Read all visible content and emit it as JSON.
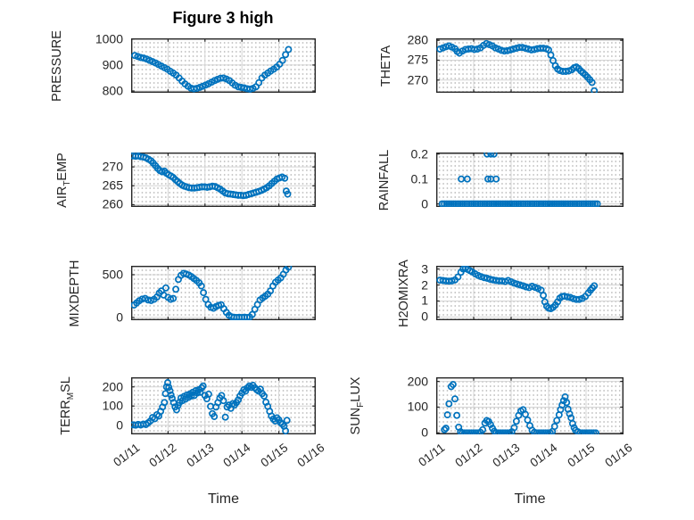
{
  "figure": {
    "title": "Figure 3 high",
    "xlabel": "Time",
    "marker_color": "#0072BD",
    "axis_color": "#262626",
    "grid_color": "#d4d4d4",
    "x_ticks": [
      11,
      12,
      13,
      14,
      15,
      16
    ],
    "x_ticklabels": [
      "01/11",
      "01/12",
      "01/13",
      "01/14",
      "01/15",
      "01/16"
    ],
    "xlim": [
      11,
      16
    ]
  },
  "chart_data": [
    {
      "id": "pressure",
      "type": "scatter",
      "title": "",
      "ylabel": "PRESSURE",
      "ylabel_parts": [
        {
          "t": "PRESSURE"
        }
      ],
      "ylim": [
        793,
        1003
      ],
      "yticks": [
        800,
        900,
        1000
      ],
      "ytick_labels": [
        "800",
        "900",
        "1000"
      ],
      "grid": true,
      "show_x_ticklabels": false,
      "x": [
        11.1,
        11.18,
        11.26,
        11.34,
        11.42,
        11.5,
        11.58,
        11.66,
        11.74,
        11.82,
        11.9,
        11.98,
        12.06,
        12.14,
        12.22,
        12.3,
        12.38,
        12.46,
        12.54,
        12.62,
        12.7,
        12.78,
        12.86,
        12.94,
        13.02,
        13.1,
        13.18,
        13.26,
        13.34,
        13.42,
        13.5,
        13.58,
        13.66,
        13.74,
        13.82,
        13.9,
        13.98,
        14.06,
        14.14,
        14.22,
        14.3,
        14.38,
        14.46,
        14.54,
        14.62,
        14.7,
        14.78,
        14.86,
        14.94,
        15.02,
        15.1,
        15.18,
        15.26
      ],
      "y": [
        937,
        933,
        929,
        927,
        923,
        918,
        913,
        908,
        902,
        896,
        890,
        884,
        876,
        869,
        861,
        850,
        838,
        827,
        818,
        811,
        808,
        810,
        814,
        818,
        823,
        828,
        834,
        840,
        845,
        849,
        850,
        846,
        840,
        831,
        822,
        816,
        814,
        812,
        809,
        807,
        810,
        816,
        832,
        850,
        861,
        869,
        877,
        884,
        892,
        903,
        918,
        940,
        960
      ]
    },
    {
      "id": "theta",
      "type": "scatter",
      "title": "",
      "ylabel": "THETA",
      "ylabel_parts": [
        {
          "t": "THETA"
        }
      ],
      "ylim": [
        266.8,
        280.5
      ],
      "yticks": [
        270,
        275,
        280
      ],
      "ytick_labels": [
        "270",
        "275",
        "280"
      ],
      "grid": true,
      "show_x_ticklabels": false,
      "x": [
        11.1,
        11.18,
        11.26,
        11.34,
        11.42,
        11.5,
        11.56,
        11.62,
        11.7,
        11.78,
        11.86,
        11.94,
        12.02,
        12.1,
        12.18,
        12.26,
        12.34,
        12.42,
        12.5,
        12.58,
        12.66,
        12.74,
        12.82,
        12.9,
        12.98,
        13.06,
        13.14,
        13.22,
        13.3,
        13.38,
        13.46,
        13.54,
        13.62,
        13.7,
        13.78,
        13.86,
        13.94,
        14.0,
        14.06,
        14.12,
        14.18,
        14.24,
        14.3,
        14.38,
        14.46,
        14.54,
        14.62,
        14.68,
        14.74,
        14.8,
        14.86,
        14.92,
        14.98,
        15.04,
        15.1,
        15.16,
        15.22
      ],
      "y": [
        277.8,
        278.1,
        278.4,
        278.6,
        278.3,
        277.9,
        277.2,
        276.8,
        277.3,
        277.7,
        277.8,
        277.9,
        277.7,
        277.8,
        278.1,
        278.7,
        279.2,
        278.9,
        278.6,
        278.1,
        277.8,
        277.5,
        277.3,
        277.4,
        277.6,
        277.8,
        278.0,
        278.2,
        278.2,
        278.0,
        277.8,
        277.6,
        277.7,
        277.9,
        278.0,
        278.0,
        277.9,
        277.6,
        276.3,
        274.9,
        273.6,
        272.8,
        272.4,
        272.2,
        272.2,
        272.3,
        272.6,
        273.1,
        273.3,
        272.9,
        272.3,
        271.8,
        271.3,
        270.7,
        270.1,
        269.4,
        267.3
      ]
    },
    {
      "id": "airtemp",
      "type": "scatter",
      "title": "",
      "ylabel": "AIR_TEMP",
      "ylabel_parts": [
        {
          "t": "AIR"
        },
        {
          "t": "T",
          "sub": true
        },
        {
          "t": "EMP"
        }
      ],
      "ylim": [
        259.4,
        273.8
      ],
      "yticks": [
        260,
        265,
        270
      ],
      "ytick_labels": [
        "260",
        "265",
        "270"
      ],
      "grid": true,
      "show_x_ticklabels": false,
      "x": [
        11.05,
        11.12,
        11.19,
        11.26,
        11.33,
        11.4,
        11.47,
        11.54,
        11.6,
        11.66,
        11.72,
        11.78,
        11.84,
        11.9,
        11.96,
        12.02,
        12.08,
        12.14,
        12.2,
        12.26,
        12.32,
        12.38,
        12.44,
        12.5,
        12.57,
        12.64,
        12.71,
        12.78,
        12.85,
        12.92,
        12.99,
        13.06,
        13.13,
        13.2,
        13.27,
        13.34,
        13.41,
        13.48,
        13.55,
        13.62,
        13.69,
        13.76,
        13.83,
        13.9,
        13.97,
        14.04,
        14.11,
        14.18,
        14.25,
        14.32,
        14.39,
        14.46,
        14.53,
        14.6,
        14.67,
        14.74,
        14.81,
        14.88,
        14.95,
        15.02,
        15.09,
        15.16,
        15.2,
        15.24
      ],
      "y": [
        272.9,
        272.8,
        272.9,
        272.7,
        272.6,
        272.4,
        272.0,
        271.6,
        271.0,
        270.3,
        269.6,
        269.0,
        268.7,
        268.9,
        268.3,
        267.9,
        267.6,
        267.2,
        266.6,
        266.1,
        265.6,
        265.2,
        264.9,
        264.7,
        264.5,
        264.4,
        264.4,
        264.5,
        264.6,
        264.7,
        264.7,
        264.6,
        264.7,
        264.9,
        264.8,
        264.5,
        264.1,
        263.6,
        263.1,
        262.9,
        262.8,
        262.7,
        262.6,
        262.5,
        262.5,
        262.4,
        262.5,
        262.7,
        262.9,
        263.1,
        263.3,
        263.5,
        263.8,
        264.1,
        264.5,
        265.0,
        265.6,
        266.2,
        266.8,
        267.1,
        267.3,
        267.0,
        263.6,
        262.8
      ]
    },
    {
      "id": "rainfall",
      "type": "scatter",
      "title": "",
      "ylabel": "RAINFALL",
      "ylabel_parts": [
        {
          "t": "RAINFALL"
        }
      ],
      "ylim": [
        -0.012,
        0.206
      ],
      "yticks": [
        0,
        0.1,
        0.2
      ],
      "ytick_labels": [
        "0",
        "0.1",
        "0.2"
      ],
      "grid": true,
      "show_x_ticklabels": false,
      "x": [
        11.16,
        11.22,
        11.28,
        11.34,
        11.4,
        11.46,
        11.52,
        11.58,
        11.64,
        11.7,
        11.76,
        11.82,
        11.88,
        11.94,
        12.0,
        12.06,
        12.12,
        12.18,
        12.24,
        12.3,
        12.36,
        12.42,
        12.48,
        12.54,
        12.6,
        12.66,
        12.72,
        12.78,
        12.84,
        12.9,
        12.96,
        13.02,
        13.08,
        13.14,
        13.2,
        13.26,
        13.32,
        13.38,
        13.44,
        13.5,
        13.56,
        13.62,
        13.68,
        13.74,
        13.8,
        13.86,
        13.92,
        13.98,
        14.04,
        14.1,
        14.16,
        14.22,
        14.28,
        14.34,
        14.4,
        14.46,
        14.52,
        14.58,
        14.64,
        14.7,
        14.76,
        14.82,
        14.88,
        14.94,
        15.0,
        15.06,
        15.12,
        15.18,
        15.24,
        15.3,
        11.67,
        11.83,
        12.38,
        12.46,
        12.6,
        12.36,
        12.46,
        12.54
      ],
      "y": [
        0,
        0,
        0,
        0,
        0,
        0,
        0,
        0,
        0,
        0,
        0,
        0,
        0,
        0,
        0,
        0,
        0,
        0,
        0,
        0,
        0,
        0,
        0,
        0,
        0,
        0,
        0,
        0,
        0,
        0,
        0,
        0,
        0,
        0,
        0,
        0,
        0,
        0,
        0,
        0,
        0,
        0,
        0,
        0,
        0,
        0,
        0,
        0,
        0,
        0,
        0,
        0,
        0,
        0,
        0,
        0,
        0,
        0,
        0,
        0,
        0,
        0,
        0,
        0,
        0,
        0,
        0,
        0,
        0,
        0,
        0.1,
        0.1,
        0.1,
        0.1,
        0.1,
        0.2,
        0.2,
        0.2
      ]
    },
    {
      "id": "mixdepth",
      "type": "scatter",
      "title": "",
      "ylabel": "MIXDEPTH",
      "ylabel_parts": [
        {
          "t": "MIXDEPTH"
        }
      ],
      "ylim": [
        -32,
        604
      ],
      "yticks": [
        0,
        500
      ],
      "ytick_labels": [
        "0",
        "500"
      ],
      "grid": true,
      "show_x_ticklabels": false,
      "x": [
        11.08,
        11.15,
        11.22,
        11.3,
        11.38,
        11.46,
        11.54,
        11.62,
        11.7,
        11.76,
        11.82,
        11.88,
        11.94,
        12.0,
        12.07,
        12.14,
        12.21,
        12.28,
        12.35,
        12.42,
        12.49,
        12.56,
        12.63,
        12.7,
        12.77,
        12.84,
        12.9,
        12.96,
        13.02,
        13.09,
        13.16,
        13.23,
        13.3,
        13.37,
        13.44,
        13.51,
        13.58,
        13.65,
        13.72,
        13.79,
        13.86,
        13.93,
        14.0,
        14.07,
        14.14,
        14.21,
        14.28,
        14.35,
        14.42,
        14.49,
        14.56,
        14.63,
        14.7,
        14.77,
        14.84,
        14.91,
        14.98,
        15.05,
        15.12,
        15.19,
        15.26
      ],
      "y": [
        145,
        170,
        195,
        215,
        222,
        205,
        198,
        212,
        240,
        285,
        310,
        262,
        345,
        235,
        212,
        222,
        330,
        445,
        492,
        515,
        508,
        497,
        478,
        455,
        432,
        405,
        368,
        290,
        212,
        152,
        118,
        108,
        128,
        142,
        148,
        102,
        60,
        25,
        8,
        2,
        0,
        2,
        0,
        3,
        0,
        5,
        35,
        95,
        150,
        205,
        228,
        248,
        272,
        310,
        368,
        412,
        438,
        462,
        505,
        555,
        588
      ]
    },
    {
      "id": "h2omixra",
      "type": "scatter",
      "title": "",
      "ylabel": "H2OMIXRA",
      "ylabel_parts": [
        {
          "t": "H2OMIXRA"
        }
      ],
      "ylim": [
        -0.2,
        3.2
      ],
      "yticks": [
        0,
        1,
        2,
        3
      ],
      "ytick_labels": [
        "0",
        "1",
        "2",
        "3"
      ],
      "grid": true,
      "show_x_ticklabels": false,
      "x": [
        11.1,
        11.18,
        11.26,
        11.34,
        11.42,
        11.5,
        11.58,
        11.66,
        11.72,
        11.78,
        11.84,
        11.9,
        11.96,
        12.04,
        12.12,
        12.2,
        12.28,
        12.36,
        12.44,
        12.52,
        12.6,
        12.68,
        12.76,
        12.84,
        12.92,
        13.0,
        13.08,
        13.16,
        13.24,
        13.32,
        13.4,
        13.48,
        13.56,
        13.64,
        13.72,
        13.8,
        13.86,
        13.9,
        13.95,
        14.0,
        14.06,
        14.12,
        14.18,
        14.24,
        14.3,
        14.36,
        14.42,
        14.5,
        14.58,
        14.66,
        14.74,
        14.82,
        14.9,
        14.98,
        15.06,
        15.12,
        15.17,
        15.22
      ],
      "y": [
        2.3,
        2.28,
        2.25,
        2.24,
        2.26,
        2.32,
        2.5,
        2.8,
        3.0,
        3.05,
        2.97,
        2.9,
        2.82,
        2.7,
        2.6,
        2.52,
        2.46,
        2.42,
        2.36,
        2.32,
        2.28,
        2.26,
        2.26,
        2.22,
        2.28,
        2.2,
        2.12,
        2.06,
        2.0,
        1.95,
        1.88,
        1.84,
        1.92,
        1.85,
        1.78,
        1.68,
        1.35,
        0.95,
        0.68,
        0.55,
        0.52,
        0.6,
        0.75,
        0.95,
        1.18,
        1.28,
        1.3,
        1.26,
        1.22,
        1.15,
        1.1,
        1.1,
        1.16,
        1.28,
        1.5,
        1.68,
        1.82,
        1.95
      ]
    },
    {
      "id": "terrmsl",
      "type": "scatter",
      "title": "",
      "ylabel": "TERR_MSL",
      "ylabel_parts": [
        {
          "t": "TERR"
        },
        {
          "t": "M",
          "sub": true
        },
        {
          "t": "SL"
        }
      ],
      "ylim": [
        -48,
        250
      ],
      "yticks": [
        0,
        100,
        200
      ],
      "ytick_labels": [
        "0",
        "100",
        "200"
      ],
      "grid": true,
      "show_x_ticklabels": true,
      "x": [
        11.05,
        11.12,
        11.19,
        11.26,
        11.33,
        11.4,
        11.46,
        11.52,
        11.58,
        11.64,
        11.7,
        11.75,
        11.8,
        11.85,
        11.9,
        11.93,
        11.96,
        11.99,
        12.02,
        12.05,
        12.08,
        12.11,
        12.15,
        12.19,
        12.23,
        12.27,
        12.31,
        12.35,
        12.39,
        12.43,
        12.47,
        12.51,
        12.55,
        12.59,
        12.63,
        12.67,
        12.71,
        12.75,
        12.79,
        12.83,
        12.87,
        12.91,
        12.95,
        13.0,
        13.05,
        13.1,
        13.15,
        13.2,
        13.25,
        13.3,
        13.35,
        13.4,
        13.45,
        13.5,
        13.55,
        13.6,
        13.65,
        13.7,
        13.75,
        13.8,
        13.85,
        13.9,
        13.95,
        14.0,
        14.05,
        14.1,
        14.15,
        14.2,
        14.25,
        14.3,
        14.35,
        14.4,
        14.45,
        14.5,
        14.55,
        14.6,
        14.65,
        14.7,
        14.75,
        14.8,
        14.85,
        14.9,
        14.95,
        15.0,
        15.05,
        15.1,
        15.14,
        15.18,
        15.22
      ],
      "y": [
        2,
        0,
        4,
        1,
        6,
        3,
        12,
        22,
        40,
        34,
        55,
        48,
        72,
        95,
        118,
        165,
        200,
        222,
        198,
        180,
        158,
        140,
        118,
        95,
        80,
        103,
        118,
        142,
        128,
        150,
        136,
        158,
        145,
        163,
        152,
        172,
        155,
        180,
        168,
        185,
        172,
        195,
        205,
        155,
        138,
        162,
        98,
        60,
        45,
        95,
        118,
        142,
        155,
        128,
        42,
        95,
        105,
        88,
        112,
        105,
        118,
        132,
        152,
        168,
        185,
        178,
        195,
        205,
        198,
        208,
        195,
        185,
        178,
        188,
        165,
        152,
        120,
        98,
        72,
        48,
        32,
        22,
        38,
        28,
        12,
        5,
        -5,
        -30,
        25
      ]
    },
    {
      "id": "sunflux",
      "type": "scatter",
      "title": "",
      "ylabel": "SUN_FLUX",
      "ylabel_parts": [
        {
          "t": "SUN"
        },
        {
          "t": "F",
          "sub": true
        },
        {
          "t": "LUX"
        }
      ],
      "ylim": [
        -6,
        216
      ],
      "yticks": [
        0,
        100,
        200
      ],
      "ytick_labels": [
        "0",
        "100",
        "200"
      ],
      "grid": true,
      "show_x_ticklabels": true,
      "x": [
        11.22,
        11.26,
        11.3,
        11.34,
        11.4,
        11.45,
        11.5,
        11.55,
        11.6,
        11.65,
        11.7,
        11.76,
        11.82,
        11.88,
        11.94,
        12.0,
        12.06,
        12.12,
        12.18,
        12.24,
        12.3,
        12.35,
        12.4,
        12.45,
        12.5,
        12.55,
        12.6,
        12.66,
        12.72,
        12.78,
        12.84,
        12.9,
        12.96,
        13.02,
        13.08,
        13.14,
        13.2,
        13.26,
        13.32,
        13.38,
        13.44,
        13.5,
        13.56,
        13.62,
        13.68,
        13.74,
        13.8,
        13.86,
        13.92,
        13.98,
        14.04,
        14.1,
        14.16,
        14.22,
        14.28,
        14.32,
        14.36,
        14.4,
        14.44,
        14.48,
        14.52,
        14.56,
        14.6,
        14.64,
        14.68,
        14.72,
        14.78,
        14.84,
        14.9,
        14.96,
        15.02,
        15.08,
        15.14,
        15.2,
        15.26
      ],
      "y": [
        12,
        18,
        70,
        113,
        180,
        188,
        132,
        68,
        22,
        4,
        0,
        0,
        0,
        0,
        0,
        0,
        0,
        0,
        2,
        12,
        38,
        48,
        44,
        32,
        18,
        6,
        0,
        0,
        0,
        0,
        0,
        0,
        0,
        4,
        20,
        45,
        68,
        85,
        90,
        72,
        50,
        28,
        10,
        2,
        0,
        0,
        0,
        0,
        0,
        0,
        0,
        5,
        25,
        48,
        70,
        90,
        108,
        125,
        140,
        118,
        92,
        74,
        58,
        36,
        20,
        10,
        4,
        0,
        0,
        0,
        0,
        0,
        0,
        0,
        0
      ]
    }
  ]
}
